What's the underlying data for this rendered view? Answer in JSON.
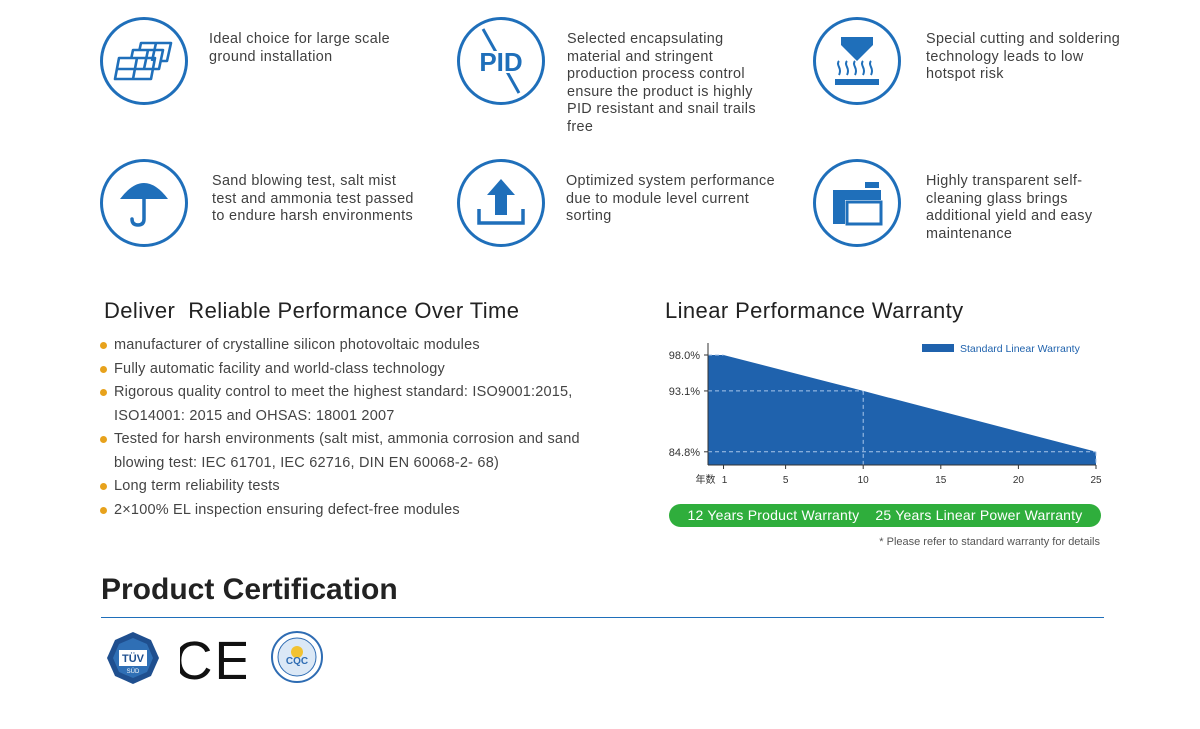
{
  "features": [
    {
      "icon": "solar-panels-icon",
      "text": "Ideal choice for large scale ground installation"
    },
    {
      "icon": "pid-icon",
      "icon_text": "PID",
      "text": "Selected encapsulating material and stringent production process control ensure the product is highly PID resistant and snail trails free"
    },
    {
      "icon": "soldering-icon",
      "text": "Special cutting and soldering technology leads to low hotspot risk"
    },
    {
      "icon": "umbrella-icon",
      "text": "Sand blowing test, salt mist test and ammonia test passed to endure harsh environments"
    },
    {
      "icon": "upload-arrow-icon",
      "text": "Optimized system performance due to module level current sorting"
    },
    {
      "icon": "glass-panels-icon",
      "text": "Highly transparent self-cleaning glass brings additional yield and easy maintenance"
    }
  ],
  "performance": {
    "title": "Deliver  Reliable Performance Over Time",
    "items": [
      "manufacturer of crystalline silicon photovoltaic modules",
      "Fully automatic facility and world-class technology",
      "Rigorous quality control to meet the highest standard: ISO9001:2015, ISO14001: 2015 and OHSAS: 18001 2007",
      "Tested for harsh environments (salt mist, ammonia corrosion and sand blowing test: IEC 61701, IEC 62716, DIN EN 60068-2- 68)",
      "Long term reliability tests",
      "2×100% EL inspection ensuring defect-free modules"
    ],
    "bullet_color": "#e7a21c"
  },
  "warranty": {
    "title": "Linear Performance Warranty",
    "product_warranty": "12 Years Product Warranty",
    "power_warranty": "25 Years Linear Power Warranty",
    "note": "* Please refer to standard warranty for details",
    "pill_color": "#2fae3c"
  },
  "chart_data": {
    "type": "area",
    "x_axis_label": "年数",
    "x_ticks": [
      1,
      5,
      10,
      15,
      20,
      25
    ],
    "y_ticks": [
      "98.0%",
      "93.1%",
      "84.8%"
    ],
    "series": [
      {
        "name": "Standard Linear Warranty",
        "x": [
          0,
          1,
          10,
          25
        ],
        "y": [
          98.0,
          98.0,
          93.1,
          84.8
        ],
        "color": "#1f62ad"
      }
    ],
    "reference_lines": [
      {
        "x": 10,
        "y": 93.1
      },
      {
        "x": 25,
        "y": 84.8
      }
    ],
    "xlim": [
      0,
      25
    ],
    "ylim": [
      83.0,
      98.0
    ],
    "legend_position": "top-right"
  },
  "certification": {
    "title": "Product Certification",
    "logos": [
      {
        "name": "tuv-sud-logo",
        "text": "TÜV",
        "subtext": "SÜD"
      },
      {
        "name": "ce-mark-logo",
        "text": "CE"
      },
      {
        "name": "cqc-logo",
        "text": "CQC"
      }
    ]
  },
  "colors": {
    "brand_blue": "#1f6fba",
    "chart_blue": "#1f62ad",
    "green": "#2fae3c",
    "orange": "#e7a21c"
  }
}
